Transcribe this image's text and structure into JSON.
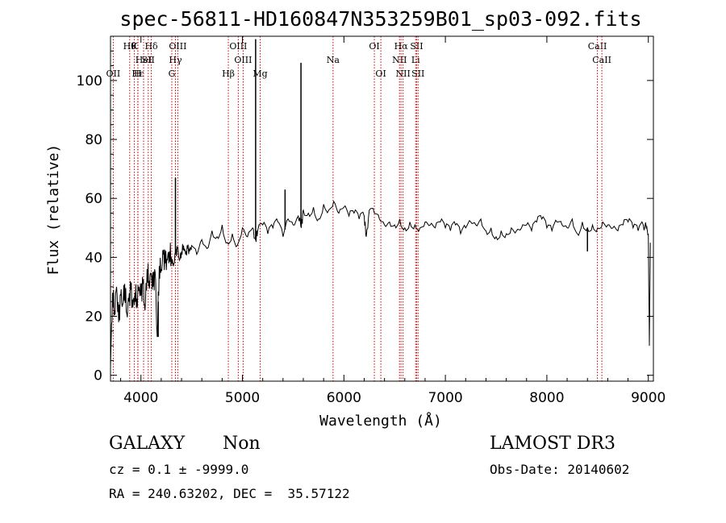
{
  "chart_data": {
    "type": "line",
    "title": "spec-56811-HD160847N353259B01_sp03-092.fits",
    "xlabel": "Wavelength (Å)",
    "ylabel": "Flux (relative)",
    "xlim": [
      3700,
      9050
    ],
    "ylim": [
      -2,
      115
    ],
    "xticks": [
      4000,
      5000,
      6000,
      7000,
      8000,
      9000
    ],
    "yticks": [
      0,
      20,
      40,
      60,
      80,
      100
    ],
    "grid": false,
    "series_color": "#000000",
    "line_color": "#cc0000",
    "spectrum": {
      "x": [
        3700,
        3720,
        3740,
        3760,
        3780,
        3800,
        3820,
        3840,
        3860,
        3880,
        3900,
        3920,
        3940,
        3960,
        3980,
        4000,
        4020,
        4040,
        4060,
        4080,
        4100,
        4120,
        4140,
        4160,
        4180,
        4200,
        4220,
        4240,
        4260,
        4280,
        4300,
        4320,
        4340,
        4360,
        4380,
        4400,
        4420,
        4440,
        4460,
        4480,
        4500,
        4550,
        4600,
        4650,
        4700,
        4750,
        4800,
        4850,
        4900,
        4950,
        5000,
        5050,
        5100,
        5130,
        5150,
        5200,
        5250,
        5300,
        5350,
        5400,
        5450,
        5500,
        5550,
        5580,
        5600,
        5650,
        5700,
        5750,
        5800,
        5850,
        5900,
        5950,
        6000,
        6050,
        6100,
        6150,
        6200,
        6220,
        6250,
        6300,
        6350,
        6400,
        6450,
        6500,
        6550,
        6600,
        6650,
        6700,
        6750,
        6800,
        6850,
        6900,
        6950,
        7000,
        7050,
        7100,
        7150,
        7200,
        7250,
        7300,
        7350,
        7400,
        7450,
        7500,
        7550,
        7600,
        7650,
        7700,
        7750,
        7800,
        7850,
        7900,
        7950,
        8000,
        8050,
        8100,
        8150,
        8200,
        8250,
        8300,
        8350,
        8400,
        8450,
        8500,
        8550,
        8600,
        8650,
        8700,
        8750,
        8800,
        8850,
        8900,
        8950,
        8980,
        9000,
        9010,
        9020
      ],
      "y": [
        3,
        28,
        22,
        30,
        18,
        27,
        24,
        31,
        21,
        25,
        29,
        23,
        28,
        26,
        30,
        27,
        31,
        22,
        36,
        32,
        34,
        30,
        35,
        13,
        37,
        36,
        41,
        38,
        39,
        42,
        40,
        37,
        41,
        43,
        39,
        42,
        44,
        41,
        43,
        42,
        44,
        41,
        46,
        43,
        49,
        47,
        51,
        45,
        48,
        44,
        50,
        47,
        50,
        46,
        49,
        51,
        48,
        50,
        52,
        47,
        53,
        51,
        54,
        50,
        56,
        55,
        57,
        53,
        58,
        56,
        59,
        55,
        57,
        54,
        55,
        53,
        54,
        47,
        56,
        55,
        53,
        51,
        52,
        51,
        53,
        50,
        52,
        51,
        50,
        52,
        51,
        50,
        52,
        50,
        49,
        51,
        48,
        50,
        52,
        51,
        53,
        49,
        50,
        47,
        49,
        48,
        50,
        49,
        50,
        51,
        49,
        52,
        53,
        50,
        49,
        52,
        51,
        50,
        53,
        48,
        52,
        50,
        51,
        50,
        52,
        51,
        50,
        49,
        51,
        52,
        50,
        49,
        51,
        50,
        48,
        10,
        45
      ]
    },
    "spikes": [
      {
        "x": 4170,
        "y": 13
      },
      {
        "x": 4340,
        "y": 67
      },
      {
        "x": 5130,
        "y": 114
      },
      {
        "x": 5420,
        "y": 63
      },
      {
        "x": 5577,
        "y": 106
      },
      {
        "x": 8400,
        "y": 42
      }
    ],
    "line_marks": [
      {
        "x": 3934,
        "label": "K",
        "row": 0
      },
      {
        "x": 3969,
        "label": "H",
        "row": 2
      },
      {
        "x": 3727,
        "label": "OII",
        "row": 2
      },
      {
        "x": 3889,
        "label": "Hθ",
        "row": 0
      },
      {
        "x": 3970,
        "label": "Hε",
        "row": 2
      },
      {
        "x": 4026,
        "label": "HeI",
        "row": 1
      },
      {
        "x": 4102,
        "label": "Hδ",
        "row": 0
      },
      {
        "x": 4072,
        "label": "SII",
        "row": 1
      },
      {
        "x": 4340,
        "label": "Hγ",
        "row": 1
      },
      {
        "x": 4304,
        "label": "G",
        "row": 2
      },
      {
        "x": 4363,
        "label": "OIII",
        "row": 0
      },
      {
        "x": 4861,
        "label": "Hβ",
        "row": 2
      },
      {
        "x": 4959,
        "label": "OIII",
        "row": 0
      },
      {
        "x": 5007,
        "label": "OIII",
        "row": 1
      },
      {
        "x": 5175,
        "label": "Mg",
        "row": 2
      },
      {
        "x": 5893,
        "label": "Na",
        "row": 1
      },
      {
        "x": 6300,
        "label": "OI",
        "row": 0
      },
      {
        "x": 6364,
        "label": "OI",
        "row": 2
      },
      {
        "x": 6548,
        "label": "NII",
        "row": 1
      },
      {
        "x": 6563,
        "label": "Hα",
        "row": 0
      },
      {
        "x": 6583,
        "label": "NII",
        "row": 2
      },
      {
        "x": 6707,
        "label": "Li",
        "row": 1
      },
      {
        "x": 6717,
        "label": "SII",
        "row": 0
      },
      {
        "x": 6731,
        "label": "SII",
        "row": 2
      },
      {
        "x": 8498,
        "label": "CaII",
        "row": 0
      },
      {
        "x": 8542,
        "label": "CaII",
        "row": 1
      }
    ]
  },
  "info": {
    "class_label": "GALAXY",
    "subclass_label": "Non",
    "survey_label": "LAMOST DR3",
    "cz_line": "cz = 0.1 ± -9999.0",
    "obs_date_line": "Obs-Date: 20140602",
    "radec_line": "RA = 240.63202, DEC =  35.57122"
  }
}
